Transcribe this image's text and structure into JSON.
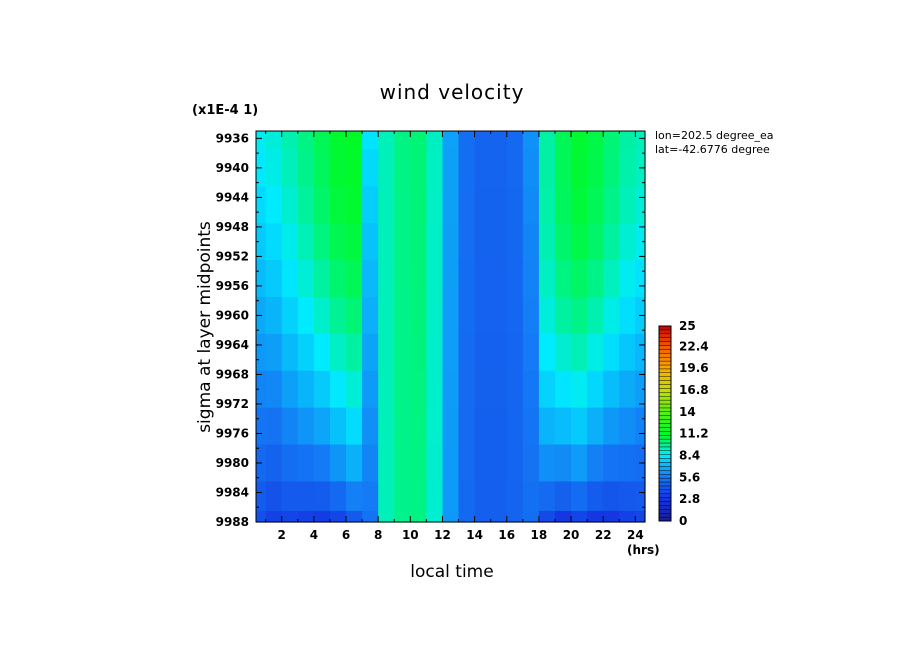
{
  "chart_data": {
    "type": "heatmap",
    "title": "wind velocity",
    "scale_note": "(x1E-4 1)",
    "xlabel": "local time",
    "xunit": "(hrs)",
    "ylabel": "sigma at layer midpoints",
    "info": [
      "lon=202.5 degree_ea",
      "lat=-42.6776 degree"
    ],
    "x_ticks": [
      "2",
      "4",
      "6",
      "8",
      "10",
      "12",
      "14",
      "16",
      "18",
      "20",
      "22",
      "24"
    ],
    "y_ticks": [
      "9936",
      "9940",
      "9944",
      "9948",
      "9952",
      "9956",
      "9960",
      "9964",
      "9968",
      "9972",
      "9976",
      "9980",
      "9984",
      "9988"
    ],
    "xlim": [
      0.4,
      24.6
    ],
    "ylim": [
      0.9935,
      0.9988
    ],
    "colorbar": {
      "min": 0,
      "max": 25,
      "labels": [
        "25",
        "22.4",
        "19.6",
        "16.8",
        "14",
        "11.2",
        "8.4",
        "5.6",
        "2.8",
        "0"
      ]
    },
    "x_values": [
      0.5,
      1.5,
      2.5,
      3.5,
      4.5,
      5.5,
      6.5,
      7.5,
      8.5,
      9.5,
      10.5,
      11.5,
      12.5,
      13.5,
      14.5,
      15.5,
      16.5,
      17.5,
      18.5,
      19.5,
      20.5,
      21.5,
      22.5,
      23.5,
      24.5
    ],
    "y_values": [
      0.9935,
      0.994,
      0.9945,
      0.995,
      0.9955,
      0.996,
      0.9965,
      0.997,
      0.9975,
      0.998,
      0.9985,
      0.9988
    ],
    "z_top": [
      8.6,
      8.9,
      9.4,
      10.0,
      10.6,
      11.1,
      11.2,
      8.2,
      9.3,
      10.0,
      10.2,
      9.2,
      6.6,
      5.2,
      4.8,
      4.8,
      5.0,
      6.2,
      9.6,
      10.6,
      11.1,
      10.8,
      10.2,
      9.6,
      9.3
    ],
    "z_bottom": [
      4.0,
      3.4,
      3.6,
      3.4,
      3.2,
      3.6,
      4.4,
      5.4,
      9.3,
      9.9,
      10.0,
      9.0,
      6.4,
      5.0,
      4.6,
      4.6,
      4.8,
      5.2,
      3.8,
      3.0,
      3.6,
      3.0,
      3.0,
      3.4,
      3.6
    ],
    "z_sharpness": [
      1.2,
      1.4,
      1.6,
      1.8,
      2.0,
      2.2,
      2.4,
      1.0,
      1.0,
      1.0,
      1.0,
      1.0,
      1.0,
      1.0,
      1.0,
      1.0,
      1.0,
      1.0,
      2.6,
      2.6,
      2.4,
      2.2,
      2.0,
      1.8,
      1.6
    ]
  }
}
